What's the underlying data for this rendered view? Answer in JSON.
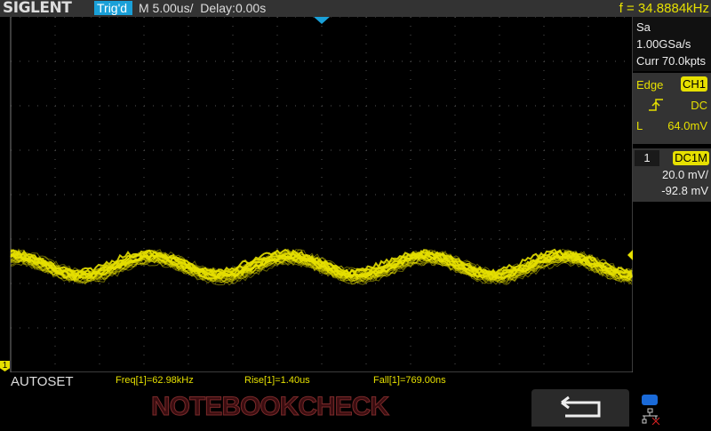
{
  "header": {
    "brand": "SIGLENT",
    "trigger_status": "Trig'd",
    "timebase": "M 5.00us/",
    "delay": "Delay:0.00s",
    "frequency": "f = 34.8884kHz"
  },
  "acquisition": {
    "sample_rate": "Sa 1.00GSa/s",
    "memory": "Curr 70.0kpts"
  },
  "trigger": {
    "type": "Edge",
    "source": "CH1",
    "coupling": "DC",
    "level_label": "L",
    "level": "64.0mV",
    "slope_icon": "rising-edge-icon"
  },
  "channel": {
    "number": "1",
    "coupling": "DC1M",
    "scale": "20.0 mV/",
    "offset": "-92.8 mV",
    "marker": "1"
  },
  "bottom": {
    "autoset": "AUTOSET",
    "measurements": [
      "Freq[1]=62.98kHz",
      "Rise[1]=1.40us",
      "Fall[1]=769.00ns"
    ],
    "watermark": "NOTEBOOKCHECK"
  },
  "colors": {
    "trace": "#e6e000",
    "trigger_marker": "#1aa0d8",
    "background": "#000000"
  }
}
